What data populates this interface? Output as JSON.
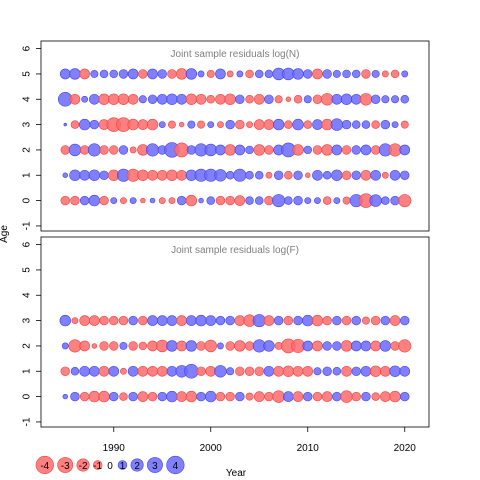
{
  "chart_data": {
    "type": "scatter",
    "encoding": "bubble",
    "x_label": "Year",
    "y_label": "Age",
    "x_ticks": [
      1990,
      2000,
      2010,
      2020
    ],
    "y_ticks": [
      -1,
      0,
      1,
      2,
      3,
      4,
      5,
      6
    ],
    "xlim": [
      1982.5,
      2022.5
    ],
    "colors": {
      "positive": "#6a6aff",
      "negative": "#ff6a6a",
      "positive_stroke": "#4444ee",
      "negative_stroke": "#ee4444"
    },
    "legend": {
      "values": [
        -4,
        -3,
        -2,
        -1,
        0,
        1,
        2,
        3,
        4
      ],
      "labels": [
        "-4",
        "-3",
        "-2",
        "-1",
        "0",
        "1",
        "2",
        "3",
        "4"
      ]
    },
    "panels": [
      {
        "title": "Joint sample residuals log(N)",
        "ylim": [
          -1.2,
          6.3
        ],
        "ages": [
          0,
          1,
          2,
          3,
          4,
          5
        ],
        "years": [
          1985,
          1986,
          1987,
          1988,
          1989,
          1990,
          1991,
          1992,
          1993,
          1994,
          1995,
          1996,
          1997,
          1998,
          1999,
          2000,
          2001,
          2002,
          2003,
          2004,
          2005,
          2006,
          2007,
          2008,
          2009,
          2010,
          2011,
          2012,
          2013,
          2014,
          2015,
          2016,
          2017,
          2018,
          2019,
          2020
        ],
        "residuals": [
          [
            -1.0,
            -1.0,
            1.0,
            1.5,
            -1.0,
            0.5,
            -0.5,
            0.5,
            -0.3,
            0.3,
            -0.5,
            -0.5,
            1.0,
            -1.5,
            0.3,
            0.8,
            -1.0,
            -1.0,
            -1.3,
            0.8,
            0.8,
            -1.0,
            2.0,
            0.8,
            1.0,
            0.5,
            0.5,
            -0.8,
            0.5,
            -0.7,
            2.0,
            -2.5,
            1.8,
            0.8,
            1.0,
            -2.0
          ],
          [
            0.3,
            1.5,
            1.3,
            1.5,
            1.0,
            -1.5,
            2.0,
            -2.0,
            -1.5,
            -1.3,
            -1.3,
            -1.5,
            -1.3,
            1.5,
            2.0,
            2.0,
            1.8,
            0.8,
            2.0,
            0.8,
            0.8,
            -0.5,
            1.0,
            -0.8,
            1.0,
            -0.3,
            1.3,
            0.8,
            1.5,
            -1.0,
            1.0,
            -1.3,
            1.3,
            -0.5,
            1.3,
            1.0
          ],
          [
            -1.0,
            1.8,
            -1.0,
            2.0,
            -1.0,
            -1.0,
            1.0,
            -0.5,
            -1.5,
            2.0,
            1.0,
            2.8,
            -2.5,
            1.0,
            2.0,
            1.8,
            1.3,
            -1.5,
            1.3,
            0.8,
            -1.5,
            -1.0,
            1.3,
            2.5,
            -1.5,
            0.8,
            -1.0,
            -1.5,
            1.3,
            -1.0,
            1.0,
            1.3,
            -1.0,
            2.0,
            -2.0,
            1.3
          ],
          [
            0.1,
            -0.8,
            1.5,
            1.0,
            -1.3,
            -2.5,
            -2.5,
            -1.5,
            -1.3,
            -1.5,
            0.5,
            -0.7,
            -0.3,
            0.7,
            -0.7,
            0.5,
            -0.5,
            1.0,
            -1.0,
            -0.5,
            -1.3,
            -1.3,
            1.5,
            -0.8,
            1.5,
            -0.8,
            1.3,
            -1.5,
            1.8,
            1.0,
            0.8,
            0.8,
            -0.8,
            1.0,
            0.5,
            -0.7
          ],
          [
            2.5,
            -1.3,
            0.5,
            1.3,
            -1.5,
            -1.5,
            -1.5,
            -1.3,
            0.7,
            1.0,
            1.3,
            1.5,
            1.3,
            -1.5,
            -1.3,
            -0.8,
            -1.3,
            -1.5,
            1.0,
            -0.8,
            -1.3,
            1.0,
            -0.7,
            -0.3,
            -0.8,
            0.7,
            -1.0,
            -1.8,
            1.3,
            1.5,
            1.3,
            -1.8,
            1.0,
            0.7,
            0.7,
            0.8
          ],
          [
            1.3,
            1.5,
            -1.3,
            0.7,
            0.8,
            0.8,
            1.0,
            1.3,
            -1.0,
            1.3,
            1.0,
            -1.0,
            -1.5,
            1.5,
            0.5,
            -0.7,
            1.3,
            -0.5,
            0.5,
            -0.8,
            0.8,
            0.8,
            1.8,
            1.8,
            1.5,
            1.0,
            -1.3,
            1.0,
            0.7,
            0.8,
            0.8,
            -1.0,
            0.7,
            -0.5,
            -0.8,
            0.5
          ]
        ]
      },
      {
        "title": "Joint sample residuals log(F)",
        "ylim": [
          -1.2,
          6.3
        ],
        "ages": [
          0,
          1,
          2,
          3
        ],
        "years": [
          1985,
          1986,
          1987,
          1988,
          1989,
          1990,
          1991,
          1992,
          1993,
          1994,
          1995,
          1996,
          1997,
          1998,
          1999,
          2000,
          2001,
          2002,
          2003,
          2004,
          2005,
          2006,
          2007,
          2008,
          2009,
          2010,
          2011,
          2012,
          2013,
          2014,
          2015,
          2016,
          2017,
          2018,
          2019,
          2020
        ],
        "residuals": [
          [
            0.3,
            1.0,
            -1.0,
            -1.5,
            -1.5,
            1.0,
            -0.8,
            1.0,
            -1.3,
            -1.0,
            1.0,
            1.5,
            -1.3,
            -1.5,
            1.0,
            1.5,
            -1.0,
            -1.0,
            1.0,
            -0.7,
            -1.3,
            -1.0,
            -1.8,
            1.3,
            -1.3,
            1.0,
            -1.0,
            -1.3,
            1.0,
            -1.8,
            -1.0,
            1.0,
            -0.8,
            -1.3,
            -1.5,
            1.0
          ],
          [
            -1.0,
            0.8,
            1.3,
            1.3,
            -1.3,
            1.3,
            -0.5,
            1.3,
            -1.3,
            -1.3,
            -1.3,
            1.3,
            1.8,
            2.5,
            -1.0,
            -1.3,
            1.8,
            0.7,
            -1.0,
            -1.0,
            -1.0,
            1.3,
            -1.3,
            -1.5,
            -1.3,
            -1.3,
            0.7,
            1.0,
            0.8,
            -1.3,
            1.0,
            1.3,
            -1.5,
            -1.3,
            1.5,
            1.3
          ],
          [
            0.5,
            -2.0,
            -1.3,
            -0.3,
            -1.0,
            -1.0,
            0.7,
            -1.0,
            -0.8,
            -1.3,
            -1.8,
            1.5,
            -1.3,
            1.5,
            -1.0,
            -1.8,
            0.5,
            -1.0,
            -1.5,
            -1.0,
            2.0,
            1.5,
            -0.7,
            -2.5,
            -2.3,
            1.3,
            -1.3,
            1.0,
            1.0,
            -1.5,
            1.3,
            1.3,
            -1.3,
            1.5,
            -1.0,
            -2.0
          ],
          [
            1.5,
            -0.5,
            -1.3,
            -1.3,
            -1.0,
            -1.0,
            -1.0,
            1.0,
            -1.0,
            1.3,
            1.3,
            1.3,
            -1.3,
            1.3,
            1.5,
            1.3,
            1.0,
            1.0,
            -1.3,
            -1.8,
            2.0,
            -1.3,
            1.0,
            -1.0,
            1.0,
            1.5,
            -1.5,
            -1.0,
            1.0,
            -1.0,
            1.0,
            -0.7,
            -1.0,
            1.0,
            -1.3,
            1.0
          ]
        ]
      }
    ]
  }
}
